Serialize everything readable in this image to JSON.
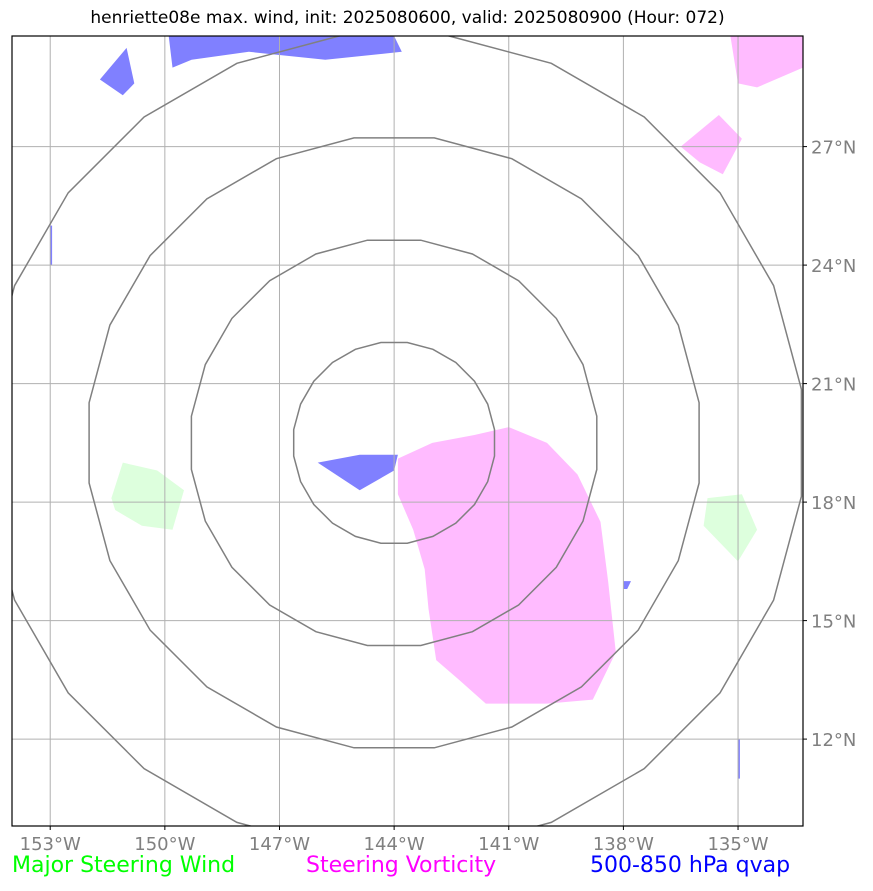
{
  "title": "henriette08e max. wind, init: 2025080600, valid: 2025080900 (Hour: 072)",
  "map": {
    "lon_range": [
      -154,
      -133.3
    ],
    "lat_range": [
      9.8,
      29.8
    ],
    "lon_ticks": [
      {
        "lon": -153,
        "label": "153°W"
      },
      {
        "lon": -150,
        "label": "150°W"
      },
      {
        "lon": -147,
        "label": "147°W"
      },
      {
        "lon": -144,
        "label": "144°W"
      },
      {
        "lon": -141,
        "label": "141°W"
      },
      {
        "lon": -138,
        "label": "138°W"
      },
      {
        "lon": -135,
        "label": "135°W"
      }
    ],
    "lat_ticks": [
      {
        "lat": 27,
        "label": "27°N"
      },
      {
        "lat": 24,
        "label": "24°N"
      },
      {
        "lat": 21,
        "label": "21°N"
      },
      {
        "lat": 18,
        "label": "18°N"
      },
      {
        "lat": 15,
        "label": "15°N"
      },
      {
        "lat": 12,
        "label": "12°N"
      }
    ],
    "range_rings": {
      "center": {
        "lon": -144,
        "lat": 19.5
      },
      "radii_deg": [
        2.65,
        5.35,
        8.05,
        10.75
      ]
    },
    "colors": {
      "steering_wind": "#ddffdd",
      "steering_vorticity": "#ffbbff",
      "qvap": "#8080ff",
      "grid": "#b0b0b0",
      "rings": "#808080"
    },
    "shapes": [
      {
        "type": "steering_vorticity",
        "name": "vorticity-main",
        "lonlat": [
          [
            -143.9,
            19.1
          ],
          [
            -143.0,
            19.5
          ],
          [
            -141.9,
            19.7
          ],
          [
            -141.0,
            19.9
          ],
          [
            -140.0,
            19.5
          ],
          [
            -139.2,
            18.7
          ],
          [
            -138.6,
            17.5
          ],
          [
            -138.4,
            16.0
          ],
          [
            -138.2,
            14.2
          ],
          [
            -138.8,
            13.0
          ],
          [
            -140.0,
            12.9
          ],
          [
            -141.6,
            12.9
          ],
          [
            -142.3,
            13.5
          ],
          [
            -142.9,
            14.0
          ],
          [
            -143.1,
            15.3
          ],
          [
            -143.2,
            16.3
          ],
          [
            -143.5,
            17.3
          ],
          [
            -143.9,
            18.2
          ]
        ]
      },
      {
        "type": "steering_vorticity",
        "name": "vorticity-top-right",
        "lonlat": [
          [
            -135.2,
            29.8
          ],
          [
            -133.3,
            29.8
          ],
          [
            -133.3,
            29.0
          ],
          [
            -134.5,
            28.5
          ],
          [
            -135.0,
            28.6
          ]
        ]
      },
      {
        "type": "steering_vorticity",
        "name": "vorticity-right",
        "lonlat": [
          [
            -136.5,
            27.0
          ],
          [
            -135.5,
            27.8
          ],
          [
            -134.9,
            27.2
          ],
          [
            -135.4,
            26.3
          ],
          [
            -136.0,
            26.6
          ]
        ]
      },
      {
        "type": "steering_wind",
        "name": "wind-left",
        "lonlat": [
          [
            -151.1,
            19.0
          ],
          [
            -150.2,
            18.8
          ],
          [
            -149.5,
            18.3
          ],
          [
            -149.8,
            17.3
          ],
          [
            -150.6,
            17.4
          ],
          [
            -151.3,
            17.8
          ],
          [
            -151.4,
            18.1
          ]
        ]
      },
      {
        "type": "steering_wind",
        "name": "wind-right",
        "lonlat": [
          [
            -135.8,
            18.1
          ],
          [
            -134.9,
            18.2
          ],
          [
            -134.5,
            17.3
          ],
          [
            -135.0,
            16.5
          ],
          [
            -135.9,
            17.4
          ]
        ]
      },
      {
        "type": "qvap",
        "name": "qvap-center",
        "lonlat": [
          [
            -146.0,
            19.0
          ],
          [
            -144.9,
            19.2
          ],
          [
            -143.9,
            19.2
          ],
          [
            -144.0,
            18.8
          ],
          [
            -144.9,
            18.3
          ]
        ]
      },
      {
        "type": "qvap",
        "name": "qvap-top",
        "lonlat": [
          [
            -149.9,
            29.8
          ],
          [
            -148.9,
            29.8
          ],
          [
            -148.0,
            29.8
          ],
          [
            -147.0,
            29.8
          ],
          [
            -144.0,
            29.8
          ],
          [
            -143.8,
            29.4
          ],
          [
            -145.8,
            29.2
          ],
          [
            -147.8,
            29.4
          ],
          [
            -149.3,
            29.2
          ],
          [
            -149.8,
            29.0
          ]
        ]
      },
      {
        "type": "qvap",
        "name": "qvap-top-left",
        "lonlat": [
          [
            -151.7,
            28.7
          ],
          [
            -151.0,
            29.5
          ],
          [
            -150.8,
            28.6
          ],
          [
            -151.1,
            28.3
          ]
        ]
      },
      {
        "type": "qvap",
        "name": "qvap-left-sliver",
        "lonlat": [
          [
            -153.0,
            25.0
          ],
          [
            -152.95,
            25.0
          ],
          [
            -152.95,
            24.0
          ],
          [
            -153.0,
            24.0
          ]
        ]
      },
      {
        "type": "qvap",
        "name": "qvap-right-dot",
        "lonlat": [
          [
            -138.0,
            16.0
          ],
          [
            -137.8,
            16.0
          ],
          [
            -137.9,
            15.8
          ],
          [
            -138.0,
            15.8
          ]
        ]
      },
      {
        "type": "qvap",
        "name": "qvap-bottom-right-sliver",
        "lonlat": [
          [
            -135.0,
            12.0
          ],
          [
            -134.95,
            12.0
          ],
          [
            -134.95,
            11.0
          ],
          [
            -135.0,
            11.0
          ]
        ]
      }
    ]
  },
  "legend": {
    "steering_wind": {
      "label": "Major Steering Wind",
      "color": "#00ff00"
    },
    "steering_vorticity": {
      "label": "Steering Vorticity",
      "color": "#ff00ff"
    },
    "qvap": {
      "label": "500-850 hPa qvap",
      "color": "#0000ff"
    }
  }
}
